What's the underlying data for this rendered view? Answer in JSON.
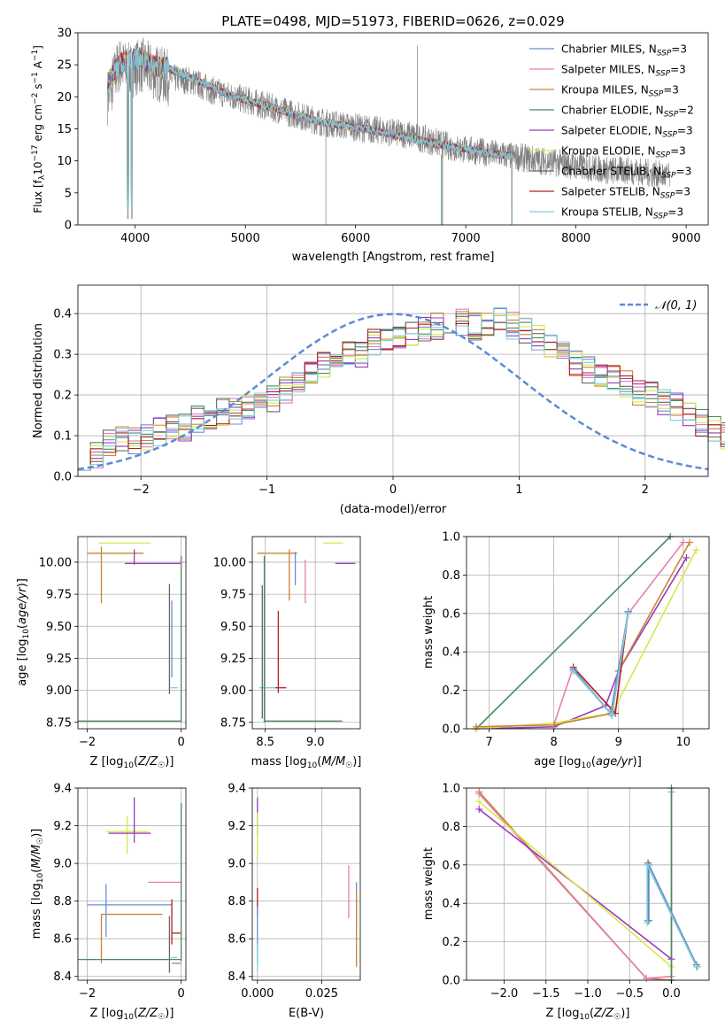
{
  "colors": {
    "Chabrier MILES": "#6a8ed4",
    "Salpeter MILES": "#e57fb0",
    "Kroupa MILES": "#c8843a",
    "Chabrier ELODIE": "#4e8a5e",
    "Salpeter ELODIE": "#9a3cb8",
    "Kroupa ELODIE": "#d8e84a",
    "Chabrier STELIB": "#666666",
    "Salpeter STELIB": "#b22222",
    "Kroupa STELIB": "#7fd0d8",
    "observed": "#808080",
    "normal": "#5b8bd8"
  },
  "chart_data": [
    {
      "id": "spectrum",
      "type": "line",
      "title": "PLATE=0498, MJD=51973, FIBERID=0626, z=0.029",
      "xlabel": "wavelength [Angstrom, rest frame]",
      "ylabel": "Flux [f_λ 10^-17 erg cm^-2 s^-1 A^-1]",
      "xlim": [
        3480,
        9200
      ],
      "ylim": [
        0,
        30
      ],
      "xticks": [
        "4000",
        "5000",
        "6000",
        "7000",
        "8000",
        "9000"
      ],
      "yticks": [
        "0",
        "5",
        "10",
        "15",
        "20",
        "25",
        "30"
      ],
      "grid": false,
      "legend_position": "top-right",
      "legend": [
        {
          "name": "Chabrier MILES",
          "nssp": "3"
        },
        {
          "name": "Salpeter MILES",
          "nssp": "3"
        },
        {
          "name": "Kroupa MILES",
          "nssp": "3"
        },
        {
          "name": "Chabrier ELODIE",
          "nssp": "2"
        },
        {
          "name": "Salpeter ELODIE",
          "nssp": "3"
        },
        {
          "name": "Kroupa ELODIE",
          "nssp": "3"
        },
        {
          "name": "Chabrier STELIB",
          "nssp": "3"
        },
        {
          "name": "Salpeter STELIB",
          "nssp": "3"
        },
        {
          "name": "Kroupa STELIB",
          "nssp": "3"
        }
      ],
      "observed_continuum": {
        "x": [
          3750,
          3850,
          3950,
          4050,
          4150,
          4300,
          4500,
          4700,
          4900,
          5100,
          5300,
          5500,
          5700,
          5900,
          6100,
          6300,
          6500,
          6700,
          6900,
          7100,
          7300,
          7500,
          7700,
          7900,
          8100,
          8300,
          8500,
          8700,
          8850
        ],
        "y": [
          20,
          25,
          24,
          25,
          24,
          23,
          22.5,
          21,
          20,
          19,
          18,
          17,
          16,
          15.5,
          15,
          14.5,
          14,
          13,
          12,
          11.5,
          11,
          10.5,
          10,
          9.5,
          9,
          8.5,
          8.5,
          8,
          7.5
        ]
      },
      "model_continuum": {
        "x": [
          3750,
          3850,
          3950,
          4050,
          4150,
          4300,
          4500,
          4700,
          4900,
          5100,
          5300,
          5500,
          5700,
          5900,
          6100,
          6300,
          6500,
          6700,
          6900,
          7100,
          7300,
          7420
        ],
        "y": [
          22,
          25,
          26,
          26,
          25,
          24.5,
          23,
          21.5,
          20,
          19,
          18,
          17,
          16,
          15.5,
          15,
          14.2,
          13.5,
          12.8,
          12.2,
          11.5,
          11,
          10.8
        ]
      }
    },
    {
      "id": "residuals",
      "type": "histogram",
      "xlabel": "(data-model)/error",
      "ylabel": "Normed distribution",
      "xlim": [
        -2.5,
        2.5
      ],
      "ylim": [
        0,
        0.47
      ],
      "xticks": [
        "−2",
        "−1",
        "0",
        "1",
        "2"
      ],
      "yticks": [
        "0.0",
        "0.1",
        "0.2",
        "0.3",
        "0.4"
      ],
      "grid": true,
      "legend_position": "top-right",
      "normal_label": "𝒩(0, 1)",
      "bin_width": 0.1,
      "bin_start": -2.5,
      "envelope": [
        0.05,
        0.05,
        0.08,
        0.09,
        0.09,
        0.1,
        0.11,
        0.12,
        0.12,
        0.14,
        0.13,
        0.16,
        0.16,
        0.17,
        0.18,
        0.19,
        0.21,
        0.23,
        0.25,
        0.27,
        0.29,
        0.3,
        0.3,
        0.33,
        0.33,
        0.34,
        0.35,
        0.36,
        0.37,
        0.38,
        0.38,
        0.37,
        0.38,
        0.38,
        0.37,
        0.36,
        0.34,
        0.32,
        0.3,
        0.28,
        0.26,
        0.25,
        0.24,
        0.23,
        0.21,
        0.2,
        0.18,
        0.17,
        0.15,
        0.13,
        0.12,
        0.1,
        0.09,
        0.08,
        0.07,
        0.06,
        0.05,
        0.04,
        0.03,
        0.03
      ]
    },
    {
      "id": "Z-age",
      "type": "scatter",
      "xlabel": "Z [log10(Z/Z☉)]",
      "ylabel": "age [log10(age/yr)]",
      "xlim": [
        -2.2,
        0.1
      ],
      "ylim": [
        8.7,
        10.2
      ],
      "xticks": [
        "−2",
        "0"
      ],
      "yticks": [
        "8.75",
        "9.00",
        "9.25",
        "9.50",
        "9.75",
        "10.00"
      ],
      "grid": true,
      "errorbars": [
        {
          "series": "Kroupa MILES",
          "x": -1.7,
          "xerr": 0.0,
          "y": 9.9,
          "yerr": 0.22
        },
        {
          "series": "Kroupa MILES",
          "x": -1.4,
          "xerr": 0.6,
          "y": 10.07,
          "yerr": 0.0
        },
        {
          "series": "Kroupa ELODIE",
          "x": -1.2,
          "xerr": 0.55,
          "y": 10.15,
          "yerr": 0.0
        },
        {
          "series": "Salpeter ELODIE",
          "x": -0.6,
          "xerr": 0.6,
          "y": 9.99,
          "yerr": 0.0
        },
        {
          "series": "Salpeter ELODIE",
          "x": -1.0,
          "xerr": 0.0,
          "y": 10.04,
          "yerr": 0.06
        },
        {
          "series": "Chabrier STELIB",
          "x": -0.25,
          "xerr": 0.0,
          "y": 9.4,
          "yerr": 0.43
        },
        {
          "series": "Chabrier MILES",
          "x": -0.2,
          "xerr": 0.0,
          "y": 9.4,
          "yerr": 0.3
        },
        {
          "series": "Kroupa STELIB",
          "x": -0.15,
          "xerr": 0.08,
          "y": 9.02,
          "yerr": 0.0
        },
        {
          "series": "Chabrier ELODIE",
          "x": 0.0,
          "xerr": 0.0,
          "y": 9.4,
          "yerr": 0.65
        },
        {
          "series": "Chabrier ELODIE",
          "x": -1.1,
          "xerr": 1.1,
          "y": 8.76,
          "yerr": 0.0
        },
        {
          "series": "Salpeter MILES",
          "x": 0.0,
          "xerr": 0.05,
          "y": 10.0,
          "yerr": 0.0
        }
      ]
    },
    {
      "id": "mass-age",
      "type": "scatter",
      "xlabel": "mass [log10(M/M☉)]",
      "ylabel": "",
      "xlim": [
        8.37,
        9.45
      ],
      "ylim": [
        8.7,
        10.2
      ],
      "xticks": [
        "8.5",
        "9.0"
      ],
      "yticks": [
        "8.75",
        "9.00",
        "9.25",
        "9.50",
        "9.75",
        "10.00"
      ],
      "grid": true,
      "errorbars": [
        {
          "series": "Kroupa MILES",
          "x": 8.62,
          "xerr": 0.2,
          "y": 10.07,
          "yerr": 0.0
        },
        {
          "series": "Kroupa MILES",
          "x": 8.74,
          "xerr": 0.0,
          "y": 9.9,
          "yerr": 0.2
        },
        {
          "series": "Chabrier MILES",
          "x": 8.8,
          "xerr": 0.0,
          "y": 9.95,
          "yerr": 0.13
        },
        {
          "series": "Salpeter MILES",
          "x": 8.9,
          "xerr": 0.0,
          "y": 9.85,
          "yerr": 0.17
        },
        {
          "series": "Kroupa ELODIE",
          "x": 9.18,
          "xerr": 0.1,
          "y": 10.15,
          "yerr": 0.0
        },
        {
          "series": "Salpeter ELODIE",
          "x": 9.3,
          "xerr": 0.1,
          "y": 9.99,
          "yerr": 0.0
        },
        {
          "series": "Salpeter STELIB",
          "x": 8.63,
          "xerr": 0.0,
          "y": 9.3,
          "yerr": 0.32
        },
        {
          "series": "Salpeter STELIB",
          "x": 8.65,
          "xerr": 0.06,
          "y": 9.02,
          "yerr": 0.0
        },
        {
          "series": "Kroupa STELIB",
          "x": 8.52,
          "xerr": 0.08,
          "y": 9.02,
          "yerr": 0.0
        },
        {
          "series": "Chabrier STELIB",
          "x": 8.47,
          "xerr": 0.0,
          "y": 9.3,
          "yerr": 0.52
        },
        {
          "series": "Chabrier ELODIE",
          "x": 8.49,
          "xerr": 0.0,
          "y": 9.4,
          "yerr": 0.65
        },
        {
          "series": "Chabrier ELODIE",
          "x": 8.88,
          "xerr": 0.39,
          "y": 8.76,
          "yerr": 0.0
        }
      ]
    },
    {
      "id": "age-weight",
      "type": "line",
      "xlabel": "age [log10(age/yr)]",
      "ylabel": "mass weight",
      "xlim": [
        6.65,
        10.4
      ],
      "ylim": [
        0,
        1
      ],
      "xticks": [
        "7",
        "8",
        "9",
        "10"
      ],
      "yticks": [
        "0.0",
        "0.2",
        "0.4",
        "0.6",
        "0.8",
        "1.0"
      ],
      "grid": true,
      "series": [
        {
          "name": "Chabrier ELODIE",
          "x": [
            6.8,
            9.8
          ],
          "y": [
            0.0,
            1.0
          ]
        },
        {
          "name": "Salpeter ELODIE",
          "x": [
            6.8,
            8.0,
            8.8,
            9.0,
            10.05
          ],
          "y": [
            0.0,
            0.01,
            0.12,
            0.3,
            0.89
          ]
        },
        {
          "name": "Kroupa ELODIE",
          "x": [
            6.8,
            8.0,
            8.9,
            10.2
          ],
          "y": [
            0.0,
            0.03,
            0.08,
            0.93
          ]
        },
        {
          "name": "Salpeter MILES",
          "x": [
            8.0,
            8.3,
            8.9,
            9.15,
            10.0
          ],
          "y": [
            0.02,
            0.32,
            0.1,
            0.6,
            0.97
          ]
        },
        {
          "name": "Kroupa MILES",
          "x": [
            6.8,
            8.0,
            8.9,
            9.0,
            10.1
          ],
          "y": [
            0.01,
            0.02,
            0.08,
            0.3,
            0.97
          ]
        },
        {
          "name": "Salpeter STELIB",
          "x": [
            8.3,
            8.95,
            9.15
          ],
          "y": [
            0.32,
            0.08,
            0.61
          ]
        },
        {
          "name": "Chabrier STELIB",
          "x": [
            8.3,
            8.9,
            9.15
          ],
          "y": [
            0.31,
            0.07,
            0.61
          ]
        },
        {
          "name": "Chabrier MILES",
          "x": [
            8.3,
            8.88,
            9.15
          ],
          "y": [
            0.31,
            0.08,
            0.61
          ]
        },
        {
          "name": "Kroupa STELIB",
          "x": [
            8.3,
            8.9,
            9.15
          ],
          "y": [
            0.3,
            0.07,
            0.6
          ]
        }
      ]
    },
    {
      "id": "Z-mass",
      "type": "scatter",
      "xlabel": "Z [log10(Z/Z☉)]",
      "ylabel": "mass [log10(M/M☉)]",
      "xlim": [
        -2.2,
        0.1
      ],
      "ylim": [
        8.38,
        9.4
      ],
      "xticks": [
        "−2",
        "0"
      ],
      "yticks": [
        "8.4",
        "8.6",
        "8.8",
        "9.0",
        "9.2",
        "9.4"
      ],
      "grid": true,
      "errorbars": [
        {
          "series": "Kroupa ELODIE",
          "x": -1.15,
          "xerr": 0.45,
          "y": 9.17,
          "yerr": 0.0
        },
        {
          "series": "Kroupa ELODIE",
          "x": -1.15,
          "xerr": 0.0,
          "y": 9.15,
          "yerr": 0.1
        },
        {
          "series": "Salpeter ELODIE",
          "x": -1.0,
          "xerr": 0.0,
          "y": 9.23,
          "yerr": 0.12
        },
        {
          "series": "Salpeter ELODIE",
          "x": -1.1,
          "xerr": 0.45,
          "y": 9.16,
          "yerr": 0.0
        },
        {
          "series": "Salpeter MILES",
          "x": -0.35,
          "xerr": 0.35,
          "y": 8.9,
          "yerr": 0.0
        },
        {
          "series": "Chabrier MILES",
          "x": -1.6,
          "xerr": 0.0,
          "y": 8.75,
          "yerr": 0.14
        },
        {
          "series": "Chabrier MILES",
          "x": -1.1,
          "xerr": 0.9,
          "y": 8.78,
          "yerr": 0.0
        },
        {
          "series": "Kroupa MILES",
          "x": -1.7,
          "xerr": 0.0,
          "y": 8.6,
          "yerr": 0.13
        },
        {
          "series": "Kroupa MILES",
          "x": -1.05,
          "xerr": 0.65,
          "y": 8.73,
          "yerr": 0.0
        },
        {
          "series": "Salpeter STELIB",
          "x": -0.2,
          "xerr": 0.0,
          "y": 8.69,
          "yerr": 0.12
        },
        {
          "series": "Salpeter STELIB",
          "x": -0.1,
          "xerr": 0.1,
          "y": 8.63,
          "yerr": 0.0
        },
        {
          "series": "Chabrier STELIB",
          "x": -0.25,
          "xerr": 0.0,
          "y": 8.57,
          "yerr": 0.15
        },
        {
          "series": "Chabrier ELODIE",
          "x": 0.0,
          "xerr": 0.0,
          "y": 8.9,
          "yerr": 0.42
        },
        {
          "series": "Chabrier ELODIE",
          "x": -1.1,
          "xerr": 1.1,
          "y": 8.49,
          "yerr": 0.0
        },
        {
          "series": "Kroupa STELIB",
          "x": -0.15,
          "xerr": 0.07,
          "y": 8.5,
          "yerr": 0.0
        },
        {
          "series": "Chabrier MILES",
          "x": -0.1,
          "xerr": 0.1,
          "y": 8.47,
          "yerr": 0.0
        }
      ]
    },
    {
      "id": "ebv-mass",
      "type": "scatter",
      "xlabel": "E(B-V)",
      "ylabel": "",
      "xlim": [
        -0.002,
        0.04
      ],
      "ylim": [
        8.38,
        9.4
      ],
      "xticks": [
        "0.000",
        "0.025"
      ],
      "yticks": [
        "8.4",
        "8.6",
        "8.8",
        "9.0",
        "9.2",
        "9.4"
      ],
      "grid": true,
      "errorbars": [
        {
          "series": "Salpeter ELODIE",
          "x": 0.0,
          "xerr": 0.0,
          "y": 9.25,
          "yerr": 0.1
        },
        {
          "series": "Kroupa ELODIE",
          "x": 0.0,
          "xerr": 0.0,
          "y": 9.15,
          "yerr": 0.12
        },
        {
          "series": "Salpeter STELIB",
          "x": 0.0,
          "xerr": 0.0,
          "y": 8.8,
          "yerr": 0.07
        },
        {
          "series": "Chabrier MILES",
          "x": 0.0,
          "xerr": 0.0,
          "y": 8.62,
          "yerr": 0.15
        },
        {
          "series": "Kroupa STELIB",
          "x": 0.0,
          "xerr": 0.0,
          "y": 8.5,
          "yerr": 0.07
        },
        {
          "series": "Salpeter MILES",
          "x": 0.0355,
          "xerr": 0.0,
          "y": 8.85,
          "yerr": 0.14
        },
        {
          "series": "Chabrier MILES",
          "x": 0.0385,
          "xerr": 0.0,
          "y": 8.78,
          "yerr": 0.12
        },
        {
          "series": "Kroupa MILES",
          "x": 0.0385,
          "xerr": 0.0,
          "y": 8.65,
          "yerr": 0.2
        }
      ]
    },
    {
      "id": "Z-weight",
      "type": "line",
      "xlabel": "Z [log10(Z/Z☉)]",
      "ylabel": "mass weight",
      "xlim": [
        -2.45,
        0.45
      ],
      "ylim": [
        0,
        1
      ],
      "xticks": [
        "−2.0",
        "−1.5",
        "−1.0",
        "−0.5",
        "0.0"
      ],
      "yticks": [
        "0.0",
        "0.2",
        "0.4",
        "0.6",
        "0.8",
        "1.0"
      ],
      "grid": true,
      "series": [
        {
          "name": "Kroupa MILES",
          "x": [
            -2.3,
            -0.3,
            0.0
          ],
          "y": [
            0.98,
            0.01,
            0.0
          ]
        },
        {
          "name": "Salpeter MILES",
          "x": [
            -2.3,
            -0.3,
            0.0,
            0.0
          ],
          "y": [
            0.97,
            0.01,
            0.02,
            0.98
          ]
        },
        {
          "name": "Salpeter ELODIE",
          "x": [
            -2.3,
            0.0
          ],
          "y": [
            0.89,
            0.11
          ]
        },
        {
          "name": "Kroupa ELODIE",
          "x": [
            -2.3,
            0.0
          ],
          "y": [
            0.93,
            0.07
          ]
        },
        {
          "name": "Chabrier ELODIE",
          "x": [
            0.0,
            0.0
          ],
          "y": [
            0.0,
            1.0
          ]
        },
        {
          "name": "Chabrier STELIB",
          "x": [
            -0.28,
            -0.28,
            0.3
          ],
          "y": [
            0.31,
            0.61,
            0.08
          ]
        },
        {
          "name": "Chabrier MILES",
          "x": [
            -0.27,
            -0.27,
            0.31
          ],
          "y": [
            0.31,
            0.6,
            0.07
          ]
        },
        {
          "name": "Kroupa STELIB",
          "x": [
            -0.29,
            -0.29,
            0.3
          ],
          "y": [
            0.3,
            0.6,
            0.07
          ]
        }
      ]
    }
  ]
}
